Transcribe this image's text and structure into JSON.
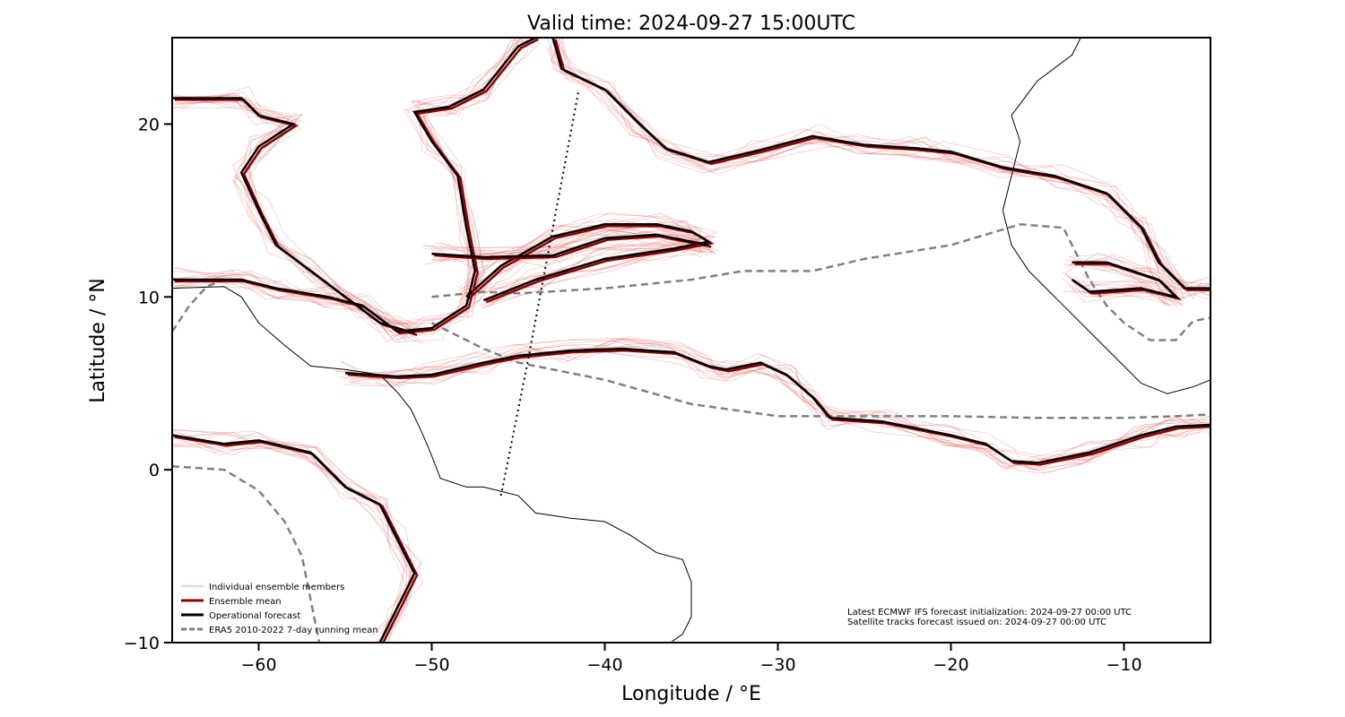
{
  "chart_data": {
    "type": "line",
    "title": "Valid time: 2024-09-27 15:00UTC",
    "xlabel": "Longitude / °E",
    "ylabel": "Latitude / °N",
    "xlim": [
      -65,
      -5
    ],
    "ylim": [
      -10,
      25
    ],
    "xticks": [
      -60,
      -50,
      -40,
      -30,
      -20,
      -10
    ],
    "yticks": [
      -10,
      0,
      10,
      20
    ],
    "xtick_labels": [
      "−60",
      "−50",
      "−40",
      "−30",
      "−20",
      "−10"
    ],
    "ytick_labels": [
      "−10",
      "0",
      "10",
      "20"
    ],
    "legend_location": "lower-left",
    "legend": [
      {
        "label": "Individual ensemble members",
        "color": "#e8a0a0",
        "style": "thin"
      },
      {
        "label": "Ensemble mean",
        "color": "#8b0000",
        "style": "solid"
      },
      {
        "label": "Operational forecast",
        "color": "#000000",
        "style": "solid"
      },
      {
        "label": "ERA5 2010-2022 7-day running mean",
        "color": "#808080",
        "style": "dashed"
      }
    ],
    "annotations": [
      "Latest ECMWF IFS forecast initialization: 2024-09-27 00:00 UTC",
      "Satellite tracks forecast issued on: 2024-09-27 00:00 UTC"
    ],
    "contours": [
      {
        "name": "southern-itcz-band",
        "points": [
          [
            -65,
            2
          ],
          [
            -62,
            1.5
          ],
          [
            -60,
            1.7
          ],
          [
            -57,
            1
          ],
          [
            -55,
            -1
          ],
          [
            -53,
            -2
          ],
          [
            -52,
            -4
          ],
          [
            -51,
            -6
          ],
          [
            -52,
            -8
          ],
          [
            -53,
            -10
          ]
        ]
      },
      {
        "name": "itcz-main-band",
        "points": [
          [
            -55,
            5.6
          ],
          [
            -52,
            5.4
          ],
          [
            -50,
            5.5
          ],
          [
            -47,
            6.2
          ],
          [
            -45,
            6.6
          ],
          [
            -42,
            6.9
          ],
          [
            -39,
            7
          ],
          [
            -36,
            6.8
          ],
          [
            -34,
            6
          ],
          [
            -33,
            5.8
          ],
          [
            -31,
            6.2
          ],
          [
            -29.5,
            5.5
          ],
          [
            -28,
            4.2
          ],
          [
            -27,
            3
          ],
          [
            -24,
            2.8
          ],
          [
            -20,
            2
          ],
          [
            -18,
            1.5
          ],
          [
            -16.5,
            0.5
          ],
          [
            -15,
            0.4
          ],
          [
            -12,
            1
          ],
          [
            -9,
            2
          ],
          [
            -7,
            2.5
          ],
          [
            -5,
            2.6
          ]
        ]
      },
      {
        "name": "northern-band",
        "points": [
          [
            -43,
            25
          ],
          [
            -42.5,
            23.2
          ],
          [
            -40,
            22
          ],
          [
            -38,
            20
          ],
          [
            -36.5,
            18.6
          ],
          [
            -34,
            17.8
          ],
          [
            -31,
            18.5
          ],
          [
            -28,
            19.3
          ],
          [
            -25,
            18.8
          ],
          [
            -22,
            18.6
          ],
          [
            -20,
            18.4
          ],
          [
            -17,
            17.5
          ],
          [
            -14,
            17
          ],
          [
            -11,
            16
          ],
          [
            -10,
            15
          ],
          [
            -9,
            14
          ],
          [
            -8,
            12
          ],
          [
            -6.5,
            10.5
          ],
          [
            -5,
            10.5
          ]
        ]
      },
      {
        "name": "middle-band-upper",
        "points": [
          [
            -48,
            10
          ],
          [
            -46,
            11.8
          ],
          [
            -43,
            13.5
          ],
          [
            -40,
            14.2
          ],
          [
            -37,
            14.2
          ],
          [
            -35,
            13.8
          ],
          [
            -34,
            13.2
          ],
          [
            -36,
            12.8
          ],
          [
            -40,
            12.2
          ],
          [
            -44,
            11
          ],
          [
            -47,
            9.8
          ]
        ]
      },
      {
        "name": "western-band",
        "points": [
          [
            -65,
            11
          ],
          [
            -61,
            11
          ],
          [
            -59,
            10.5
          ],
          [
            -56,
            10
          ],
          [
            -54,
            9.5
          ],
          [
            -52,
            8
          ],
          [
            -50,
            8.2
          ],
          [
            -48,
            9.5
          ],
          [
            -47.5,
            11.5
          ],
          [
            -48,
            14
          ],
          [
            -48.5,
            17
          ],
          [
            -50,
            19
          ],
          [
            -51,
            20.7
          ],
          [
            -49,
            21
          ],
          [
            -47,
            22
          ],
          [
            -45,
            24.5
          ],
          [
            -44,
            25
          ]
        ]
      },
      {
        "name": "north-loop",
        "points": [
          [
            -50,
            12.5
          ],
          [
            -47,
            12.3
          ],
          [
            -43,
            12.4
          ],
          [
            -40,
            13.4
          ],
          [
            -37,
            13.6
          ],
          [
            -34,
            13
          ]
        ]
      },
      {
        "name": "caribbean-band",
        "points": [
          [
            -65,
            21.5
          ],
          [
            -61,
            21.5
          ],
          [
            -60,
            20.5
          ],
          [
            -58,
            20
          ],
          [
            -60,
            18.7
          ],
          [
            -61,
            17.2
          ],
          [
            -60,
            15
          ],
          [
            -59,
            13
          ],
          [
            -57,
            11.5
          ],
          [
            -55,
            10
          ],
          [
            -53,
            8.5
          ],
          [
            -51,
            7.9
          ]
        ]
      },
      {
        "name": "east-loop",
        "points": [
          [
            -13,
            12
          ],
          [
            -11,
            12
          ],
          [
            -8,
            11
          ],
          [
            -7,
            10
          ],
          [
            -9,
            10.5
          ],
          [
            -12,
            10.3
          ],
          [
            -13,
            11
          ]
        ]
      }
    ],
    "era5_mean": [
      {
        "points": [
          [
            -50,
            10
          ],
          [
            -47,
            10.3
          ],
          [
            -45,
            10.2
          ],
          [
            -40,
            10.5
          ],
          [
            -35,
            11
          ],
          [
            -32,
            11.5
          ],
          [
            -28,
            11.5
          ],
          [
            -25,
            12.2
          ],
          [
            -20,
            13
          ],
          [
            -16,
            14.2
          ],
          [
            -13.5,
            14
          ],
          [
            -13,
            13
          ],
          [
            -12,
            11
          ],
          [
            -11,
            9.5
          ],
          [
            -10,
            8.5
          ],
          [
            -8.5,
            7.5
          ],
          [
            -7,
            7.5
          ],
          [
            -6,
            8.6
          ],
          [
            -5,
            8.8
          ]
        ]
      },
      {
        "points": [
          [
            -50,
            8.5
          ],
          [
            -47,
            7
          ],
          [
            -45,
            6.2
          ],
          [
            -40,
            5.2
          ],
          [
            -35,
            3.8
          ],
          [
            -30,
            3.1
          ],
          [
            -25,
            3.1
          ],
          [
            -20,
            3.1
          ],
          [
            -15,
            3
          ],
          [
            -10,
            3
          ],
          [
            -7,
            3.1
          ],
          [
            -5,
            3.2
          ]
        ]
      },
      {
        "points": [
          [
            -65,
            0.2
          ],
          [
            -62,
            0
          ],
          [
            -60,
            -1.2
          ],
          [
            -58.5,
            -3
          ],
          [
            -57.5,
            -5
          ],
          [
            -57,
            -7.5
          ],
          [
            -56.5,
            -10
          ]
        ]
      },
      {
        "points": [
          [
            -65,
            8
          ],
          [
            -64,
            9.5
          ],
          [
            -63,
            10.6
          ],
          [
            -62,
            11
          ]
        ]
      }
    ],
    "satellite_track": [
      [
        -46,
        -1.5
      ],
      [
        -44.5,
        6
      ],
      [
        -43,
        14
      ],
      [
        -41.5,
        22
      ]
    ],
    "coastlines": [
      [
        [
          -12.5,
          25
        ],
        [
          -13,
          24
        ],
        [
          -15,
          22.5
        ],
        [
          -16.5,
          20.5
        ],
        [
          -16,
          19
        ],
        [
          -16.5,
          17
        ],
        [
          -17,
          15
        ],
        [
          -16.5,
          13
        ],
        [
          -15.5,
          11.5
        ],
        [
          -14.5,
          10.5
        ],
        [
          -13.5,
          9.5
        ],
        [
          -12,
          8
        ],
        [
          -11,
          7
        ],
        [
          -9,
          5
        ],
        [
          -7.5,
          4.4
        ],
        [
          -6,
          4.8
        ],
        [
          -5,
          5.2
        ]
      ],
      [
        [
          -65,
          10.5
        ],
        [
          -62,
          10.6
        ],
        [
          -61,
          10
        ],
        [
          -60,
          8.5
        ],
        [
          -58.5,
          7.2
        ],
        [
          -57,
          6
        ],
        [
          -55,
          5.8
        ],
        [
          -53,
          5.5
        ],
        [
          -52,
          4.5
        ],
        [
          -51.2,
          3.5
        ],
        [
          -50.5,
          2
        ],
        [
          -50,
          0.8
        ],
        [
          -49.5,
          -0.5
        ],
        [
          -48,
          -1
        ],
        [
          -47,
          -1
        ],
        [
          -45,
          -1.5
        ],
        [
          -44,
          -2.5
        ],
        [
          -42,
          -2.8
        ],
        [
          -40,
          -3
        ],
        [
          -38.5,
          -3.8
        ],
        [
          -37,
          -4.8
        ],
        [
          -35.5,
          -5.2
        ],
        [
          -35,
          -6.5
        ],
        [
          -35,
          -8.5
        ],
        [
          -35.5,
          -9.5
        ],
        [
          -36.2,
          -10
        ]
      ]
    ]
  }
}
